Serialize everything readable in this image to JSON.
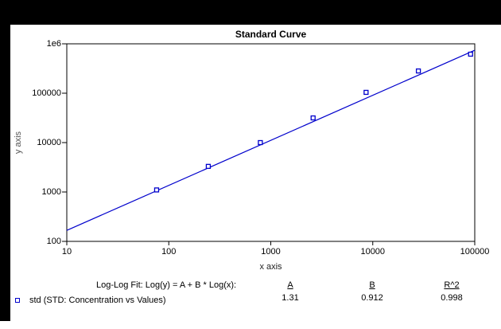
{
  "chart_data": {
    "type": "scatter",
    "title": "Standard Curve",
    "xlabel": "x axis",
    "ylabel": "y axis",
    "x_scale": "log",
    "y_scale": "log",
    "xlim": [
      10,
      100000
    ],
    "ylim": [
      100,
      1000000
    ],
    "grid": false,
    "x_ticks": [
      {
        "value": 10,
        "label": "10"
      },
      {
        "value": 100,
        "label": "100"
      },
      {
        "value": 1000,
        "label": "1000"
      },
      {
        "value": 10000,
        "label": "10000"
      },
      {
        "value": 100000,
        "label": "100000"
      }
    ],
    "y_ticks": [
      {
        "value": 100,
        "label": "100"
      },
      {
        "value": 1000,
        "label": "1000"
      },
      {
        "value": 10000,
        "label": "10000"
      },
      {
        "value": 100000,
        "label": "100000"
      },
      {
        "value": 1000000,
        "label": "1e6"
      }
    ],
    "series": [
      {
        "name": "std",
        "marker": "open-square",
        "color": "#0000cc",
        "x": [
          76,
          244,
          790,
          2600,
          8600,
          28000,
          91000
        ],
        "y": [
          1100,
          3300,
          10000,
          31600,
          104000,
          282000,
          617000
        ]
      }
    ],
    "fit": {
      "label": "Log-Log Fit: Log(y) = A + B * Log(x):",
      "line_color": "#0000cc",
      "params": [
        {
          "name": "A",
          "value": "1.31"
        },
        {
          "name": "B",
          "value": "0.912"
        },
        {
          "name": "R^2",
          "value": "0.998"
        }
      ]
    },
    "legend": {
      "label": "std (STD: Concentration vs Values)",
      "marker_color": "#0000cc",
      "position": "bottom-left"
    }
  }
}
